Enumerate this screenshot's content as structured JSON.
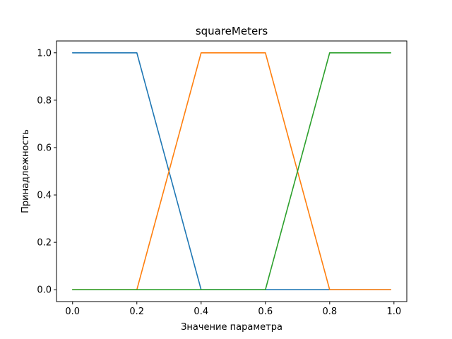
{
  "chart_data": {
    "type": "line",
    "title": "squareMeters",
    "xlabel": "Значение параметра",
    "ylabel": "Принадлежность",
    "xlim": [
      -0.05,
      1.04
    ],
    "ylim": [
      -0.05,
      1.05
    ],
    "xticks": [
      {
        "value": 0.0,
        "label": "0.0"
      },
      {
        "value": 0.2,
        "label": "0.2"
      },
      {
        "value": 0.4,
        "label": "0.4"
      },
      {
        "value": 0.6,
        "label": "0.6"
      },
      {
        "value": 0.8,
        "label": "0.8"
      },
      {
        "value": 1.0,
        "label": "1.0"
      }
    ],
    "yticks": [
      {
        "value": 0.0,
        "label": "0.0"
      },
      {
        "value": 0.2,
        "label": "0.2"
      },
      {
        "value": 0.4,
        "label": "0.4"
      },
      {
        "value": 0.6,
        "label": "0.6"
      },
      {
        "value": 0.8,
        "label": "0.8"
      },
      {
        "value": 1.0,
        "label": "1.0"
      }
    ],
    "grid": false,
    "series": [
      {
        "color": "#1f77b4",
        "x": [
          0.0,
          0.2,
          0.4,
          0.99
        ],
        "y": [
          1.0,
          1.0,
          0.0,
          0.0
        ]
      },
      {
        "color": "#ff7f0e",
        "x": [
          0.0,
          0.2,
          0.4,
          0.6,
          0.8,
          0.99
        ],
        "y": [
          0.0,
          0.0,
          1.0,
          1.0,
          0.0,
          0.0
        ]
      },
      {
        "color": "#2ca02c",
        "x": [
          0.0,
          0.6,
          0.8,
          0.99
        ],
        "y": [
          0.0,
          0.0,
          1.0,
          1.0
        ]
      }
    ]
  }
}
